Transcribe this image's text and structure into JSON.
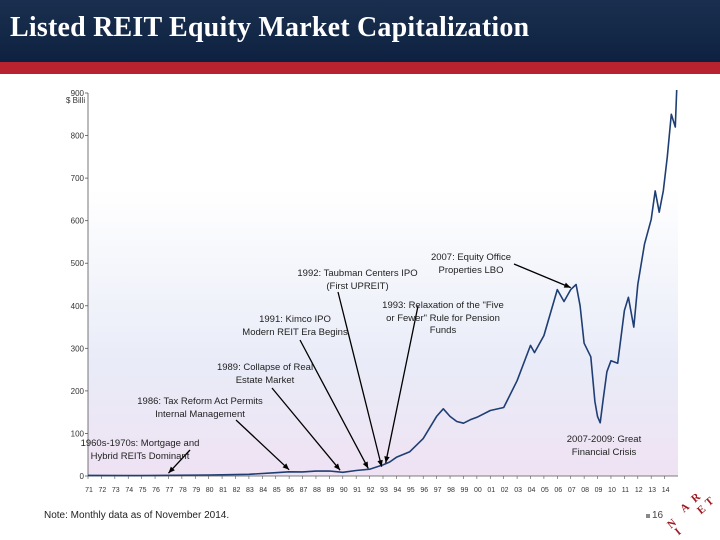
{
  "header": {
    "title": "Listed REIT Equity Market Capitalization"
  },
  "colors": {
    "header_bg": "#14284a",
    "accent_red": "#b8232f",
    "series_line": "#1f3e73"
  },
  "chart_data": {
    "type": "line",
    "title": "Listed REIT Equity Market Capitalization",
    "ylabel": "$ Billi",
    "ylim": [
      0,
      900
    ],
    "yticks": [
      "0",
      "100",
      "200",
      "300",
      "400",
      "500",
      "600",
      "700",
      "800",
      "900"
    ],
    "xlabel": "",
    "xticks": [
      "71",
      "72",
      "73",
      "74",
      "75",
      "76",
      "77",
      "78",
      "79",
      "80",
      "81",
      "82",
      "83",
      "84",
      "85",
      "86",
      "87",
      "88",
      "89",
      "90",
      "91",
      "92",
      "93",
      "94",
      "95",
      "96",
      "97",
      "98",
      "99",
      "00",
      "01",
      "02",
      "03",
      "04",
      "05",
      "06",
      "07",
      "08",
      "09",
      "10",
      "11",
      "12",
      "13",
      "14"
    ],
    "x_range": [
      1971,
      2015
    ],
    "grid": false,
    "series": [
      {
        "name": "Listed REIT equity market capitalization ($ billions, monthly)",
        "points": [
          [
            1971.0,
            1.5
          ],
          [
            1975.0,
            0.9
          ],
          [
            1980.0,
            2.3
          ],
          [
            1983.0,
            4
          ],
          [
            1985.0,
            7.7
          ],
          [
            1986.0,
            9.9
          ],
          [
            1987.0,
            9.7
          ],
          [
            1988.0,
            11.4
          ],
          [
            1989.0,
            11.7
          ],
          [
            1990.0,
            8.7
          ],
          [
            1991.0,
            12.9
          ],
          [
            1992.0,
            16
          ],
          [
            1993.0,
            26
          ],
          [
            1993.5,
            33
          ],
          [
            1994.0,
            44
          ],
          [
            1995.0,
            57
          ],
          [
            1996.0,
            88
          ],
          [
            1997.0,
            140
          ],
          [
            1997.5,
            158
          ],
          [
            1998.0,
            140
          ],
          [
            1998.5,
            128
          ],
          [
            1999.0,
            124
          ],
          [
            1999.5,
            132
          ],
          [
            2000.0,
            138
          ],
          [
            2001.0,
            154
          ],
          [
            2002.0,
            161
          ],
          [
            2003.0,
            224
          ],
          [
            2004.0,
            307
          ],
          [
            2004.3,
            290
          ],
          [
            2005.0,
            330
          ],
          [
            2006.0,
            438
          ],
          [
            2006.5,
            410
          ],
          [
            2007.0,
            438
          ],
          [
            2007.4,
            450
          ],
          [
            2007.7,
            400
          ],
          [
            2008.0,
            312
          ],
          [
            2008.5,
            280
          ],
          [
            2008.8,
            175
          ],
          [
            2009.0,
            140
          ],
          [
            2009.2,
            125
          ],
          [
            2009.4,
            175
          ],
          [
            2009.7,
            245
          ],
          [
            2010.0,
            271
          ],
          [
            2010.5,
            265
          ],
          [
            2011.0,
            389
          ],
          [
            2011.3,
            420
          ],
          [
            2011.7,
            350
          ],
          [
            2012.0,
            450
          ],
          [
            2012.5,
            545
          ],
          [
            2013.0,
            603
          ],
          [
            2013.3,
            670
          ],
          [
            2013.6,
            620
          ],
          [
            2013.9,
            670
          ],
          [
            2014.2,
            750
          ],
          [
            2014.5,
            850
          ],
          [
            2014.8,
            820
          ],
          [
            2014.9,
            907
          ]
        ]
      }
    ],
    "annotations": [
      {
        "lines": [
          "1960s-1970s: Mortgage and",
          "Hybrid REITs Dominant"
        ],
        "points_to_x": 1977.0,
        "points_to_y": 2
      },
      {
        "lines": [
          "1986: Tax Reform Act Permits",
          "Internal Management"
        ],
        "points_to_x": 1986.0,
        "points_to_y": 9.9
      },
      {
        "lines": [
          "1989: Collapse of Real",
          "Estate Market"
        ],
        "points_to_x": 1989.8,
        "points_to_y": 9
      },
      {
        "lines": [
          "1991: Kimco IPO",
          "Modern REIT Era Begins"
        ],
        "points_to_x": 1991.9,
        "points_to_y": 13
      },
      {
        "lines": [
          "1992: Taubman Centers IPO",
          "(First UPREIT)"
        ],
        "points_to_x": 1992.9,
        "points_to_y": 17
      },
      {
        "lines": [
          "1993: Relaxation of the \"Five",
          "or Fewer\" Rule for Pension",
          "Funds"
        ],
        "points_to_x": 1993.2,
        "points_to_y": 26
      },
      {
        "lines": [
          "2007: Equity Office",
          "Properties LBO"
        ],
        "points_to_x": 2007.0,
        "points_to_y": 438
      },
      {
        "lines": [
          "2007-2009: Great",
          "Financial Crisis"
        ],
        "points_to_x": 0,
        "points_to_y": 0
      }
    ]
  },
  "footer": {
    "note": "Note: Monthly data as of November 2014.",
    "page_number": "16",
    "logo_text": [
      "N",
      "A",
      "R",
      "E",
      "I",
      "T"
    ]
  }
}
